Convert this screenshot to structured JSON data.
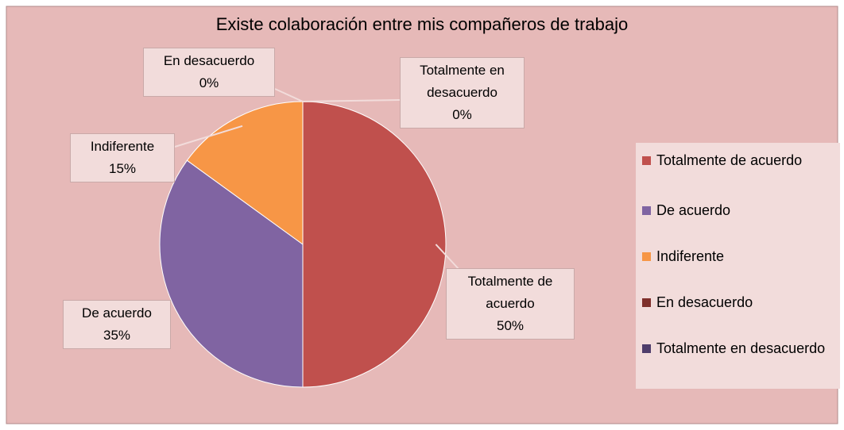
{
  "chart_data": {
    "type": "pie",
    "title": "Existe colaboración entre mis compañeros de trabajo",
    "categories": [
      "Totalmente de acuerdo",
      "De acuerdo",
      "Indiferente",
      "En desacuerdo",
      "Totalmente en desacuerdo"
    ],
    "values": [
      50,
      35,
      15,
      0,
      0
    ],
    "value_labels": [
      "50%",
      "35%",
      "15%",
      "0%",
      "0%"
    ],
    "colors": [
      "#c0504d",
      "#8064a2",
      "#f79646",
      "#7f2f2b",
      "#4f3d6b"
    ],
    "legend": "right"
  }
}
